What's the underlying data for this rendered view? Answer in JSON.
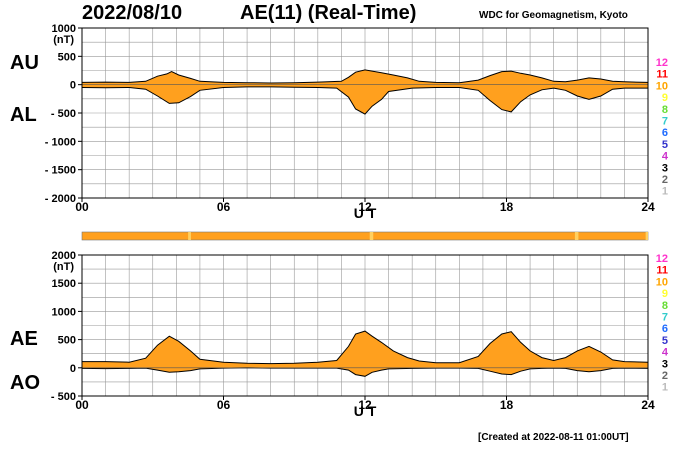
{
  "header": {
    "date": "2022/08/10",
    "title": "AE(11) (Real-Time)",
    "source": "WDC for Geomagnetism, Kyoto",
    "created": "[Created at 2022-08-11 01:00UT]"
  },
  "legend": {
    "stations": [
      "12",
      "11",
      "10",
      "9",
      "8",
      "7",
      "6",
      "5",
      "4",
      "3",
      "2",
      "1"
    ],
    "colors": [
      "#ff33cc",
      "#ff0000",
      "#ffa500",
      "#ffff33",
      "#66dd33",
      "#33cccc",
      "#1e6bff",
      "#3333cc",
      "#cc33cc",
      "#000000",
      "#666666",
      "#bbbbbb"
    ]
  },
  "colors": {
    "fill": "#ffa01e",
    "line": "#000000",
    "grid": "#999999",
    "bar_alt": "#ffd060"
  },
  "chart_data": [
    {
      "type": "area",
      "title": "AU / AL",
      "series_labels": [
        "AU",
        "AL"
      ],
      "xlabel": "U T",
      "ylabel_unit": "(nT)",
      "xlim": [
        0,
        24
      ],
      "ylim": [
        -2000,
        1000
      ],
      "yticks": [
        1000,
        500,
        0,
        -500,
        -1000,
        -1500,
        -2000
      ],
      "ytick_labels": [
        "1000",
        "500",
        "0",
        "- 500",
        "- 1000",
        "- 1500",
        "- 2000"
      ],
      "xticks": [
        0,
        6,
        12,
        18,
        24
      ],
      "xtick_labels": [
        "00",
        "06",
        "12",
        "18",
        "24"
      ],
      "upper": {
        "name": "AU",
        "points": [
          [
            0,
            40
          ],
          [
            1,
            45
          ],
          [
            2,
            40
          ],
          [
            2.7,
            60
          ],
          [
            3.2,
            150
          ],
          [
            3.6,
            190
          ],
          [
            3.8,
            230
          ],
          [
            4.1,
            170
          ],
          [
            4.6,
            110
          ],
          [
            5,
            60
          ],
          [
            6,
            40
          ],
          [
            7,
            35
          ],
          [
            8,
            30
          ],
          [
            9,
            35
          ],
          [
            10,
            45
          ],
          [
            11,
            60
          ],
          [
            11.3,
            130
          ],
          [
            11.6,
            220
          ],
          [
            12,
            260
          ],
          [
            12.3,
            240
          ],
          [
            12.7,
            210
          ],
          [
            13.2,
            170
          ],
          [
            13.8,
            120
          ],
          [
            14.3,
            60
          ],
          [
            15,
            40
          ],
          [
            16,
            35
          ],
          [
            16.8,
            80
          ],
          [
            17.3,
            160
          ],
          [
            17.8,
            230
          ],
          [
            18.2,
            240
          ],
          [
            18.6,
            200
          ],
          [
            19,
            170
          ],
          [
            19.5,
            120
          ],
          [
            20,
            60
          ],
          [
            20.5,
            50
          ],
          [
            21,
            80
          ],
          [
            21.5,
            120
          ],
          [
            22,
            100
          ],
          [
            22.5,
            60
          ],
          [
            23,
            50
          ],
          [
            24,
            40
          ]
        ]
      },
      "lower": {
        "name": "AL",
        "points": [
          [
            0,
            -50
          ],
          [
            1,
            -55
          ],
          [
            2,
            -50
          ],
          [
            2.7,
            -80
          ],
          [
            3.2,
            -200
          ],
          [
            3.7,
            -330
          ],
          [
            4.1,
            -320
          ],
          [
            4.6,
            -210
          ],
          [
            5,
            -100
          ],
          [
            6,
            -50
          ],
          [
            7,
            -40
          ],
          [
            8,
            -40
          ],
          [
            9,
            -45
          ],
          [
            10,
            -50
          ],
          [
            10.8,
            -60
          ],
          [
            11.3,
            -220
          ],
          [
            11.6,
            -430
          ],
          [
            12,
            -520
          ],
          [
            12.3,
            -380
          ],
          [
            12.7,
            -260
          ],
          [
            13,
            -120
          ],
          [
            14,
            -60
          ],
          [
            15,
            -50
          ],
          [
            16,
            -50
          ],
          [
            16.8,
            -100
          ],
          [
            17.3,
            -280
          ],
          [
            17.8,
            -440
          ],
          [
            18.2,
            -480
          ],
          [
            18.6,
            -300
          ],
          [
            19,
            -180
          ],
          [
            19.5,
            -90
          ],
          [
            20,
            -60
          ],
          [
            20.5,
            -100
          ],
          [
            21,
            -200
          ],
          [
            21.5,
            -260
          ],
          [
            22,
            -200
          ],
          [
            22.5,
            -80
          ],
          [
            23,
            -60
          ],
          [
            24,
            -60
          ]
        ]
      }
    },
    {
      "type": "area",
      "title": "AE / AO",
      "series_labels": [
        "AE",
        "AO"
      ],
      "xlabel": "U T",
      "ylabel_unit": "(nT)",
      "xlim": [
        0,
        24
      ],
      "ylim": [
        -500,
        2000
      ],
      "yticks": [
        2000,
        1500,
        1000,
        500,
        0,
        -500
      ],
      "ytick_labels": [
        "2000",
        "1500",
        "1000",
        "500",
        "0",
        "- 500"
      ],
      "xticks": [
        0,
        6,
        12,
        18,
        24
      ],
      "xtick_labels": [
        "00",
        "06",
        "12",
        "18",
        "24"
      ],
      "upper": {
        "name": "AE",
        "points": [
          [
            0,
            110
          ],
          [
            1,
            110
          ],
          [
            2,
            100
          ],
          [
            2.7,
            170
          ],
          [
            3.2,
            400
          ],
          [
            3.7,
            560
          ],
          [
            4.1,
            470
          ],
          [
            4.6,
            300
          ],
          [
            5,
            150
          ],
          [
            6,
            100
          ],
          [
            7,
            80
          ],
          [
            8,
            75
          ],
          [
            9,
            80
          ],
          [
            10,
            100
          ],
          [
            10.8,
            130
          ],
          [
            11.3,
            380
          ],
          [
            11.6,
            600
          ],
          [
            12,
            650
          ],
          [
            12.3,
            560
          ],
          [
            12.7,
            450
          ],
          [
            13.2,
            300
          ],
          [
            13.8,
            180
          ],
          [
            14.3,
            120
          ],
          [
            15,
            90
          ],
          [
            16,
            90
          ],
          [
            16.8,
            200
          ],
          [
            17.3,
            430
          ],
          [
            17.8,
            600
          ],
          [
            18.2,
            640
          ],
          [
            18.6,
            450
          ],
          [
            19,
            300
          ],
          [
            19.5,
            180
          ],
          [
            20,
            130
          ],
          [
            20.5,
            180
          ],
          [
            21,
            300
          ],
          [
            21.5,
            380
          ],
          [
            22,
            280
          ],
          [
            22.5,
            140
          ],
          [
            23,
            110
          ],
          [
            24,
            100
          ]
        ]
      },
      "lower": {
        "name": "AO",
        "points": [
          [
            0,
            -10
          ],
          [
            1,
            -15
          ],
          [
            2,
            -10
          ],
          [
            2.7,
            -5
          ],
          [
            3.2,
            -40
          ],
          [
            3.7,
            -80
          ],
          [
            4.1,
            -70
          ],
          [
            4.6,
            -50
          ],
          [
            5,
            -20
          ],
          [
            6,
            -5
          ],
          [
            7,
            0
          ],
          [
            8,
            -5
          ],
          [
            9,
            -5
          ],
          [
            10,
            -5
          ],
          [
            10.8,
            -5
          ],
          [
            11.3,
            -40
          ],
          [
            11.6,
            -120
          ],
          [
            12,
            -150
          ],
          [
            12.3,
            -80
          ],
          [
            12.7,
            -40
          ],
          [
            13,
            -20
          ],
          [
            14,
            -10
          ],
          [
            15,
            -5
          ],
          [
            16,
            -5
          ],
          [
            16.8,
            -10
          ],
          [
            17.3,
            -60
          ],
          [
            17.8,
            -110
          ],
          [
            18.2,
            -120
          ],
          [
            18.6,
            -60
          ],
          [
            19,
            -20
          ],
          [
            19.5,
            -10
          ],
          [
            20,
            -5
          ],
          [
            20.5,
            -10
          ],
          [
            21,
            -50
          ],
          [
            21.5,
            -70
          ],
          [
            22,
            -50
          ],
          [
            22.5,
            -10
          ],
          [
            23,
            -5
          ],
          [
            24,
            -10
          ]
        ]
      }
    }
  ],
  "coverage_bar": {
    "color": "#ffa01e",
    "highlights": [
      [
        4.5,
        0.12
      ],
      [
        12.2,
        0.15
      ],
      [
        20.9,
        0.15
      ],
      [
        23.9,
        0.1
      ]
    ]
  }
}
